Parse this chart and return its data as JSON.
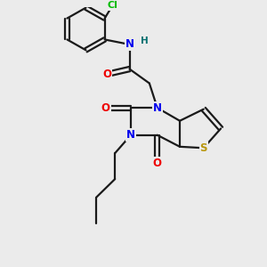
{
  "bg_color": "#ebebeb",
  "bond_color": "#1a1a1a",
  "bond_width": 1.6,
  "atom_colors": {
    "N": "#0000ee",
    "O": "#ee0000",
    "S": "#b8960c",
    "Cl": "#00bb00",
    "H": "#007070",
    "C": "#1a1a1a"
  },
  "font_size_atom": 8.5,
  "font_size_small": 7.5
}
